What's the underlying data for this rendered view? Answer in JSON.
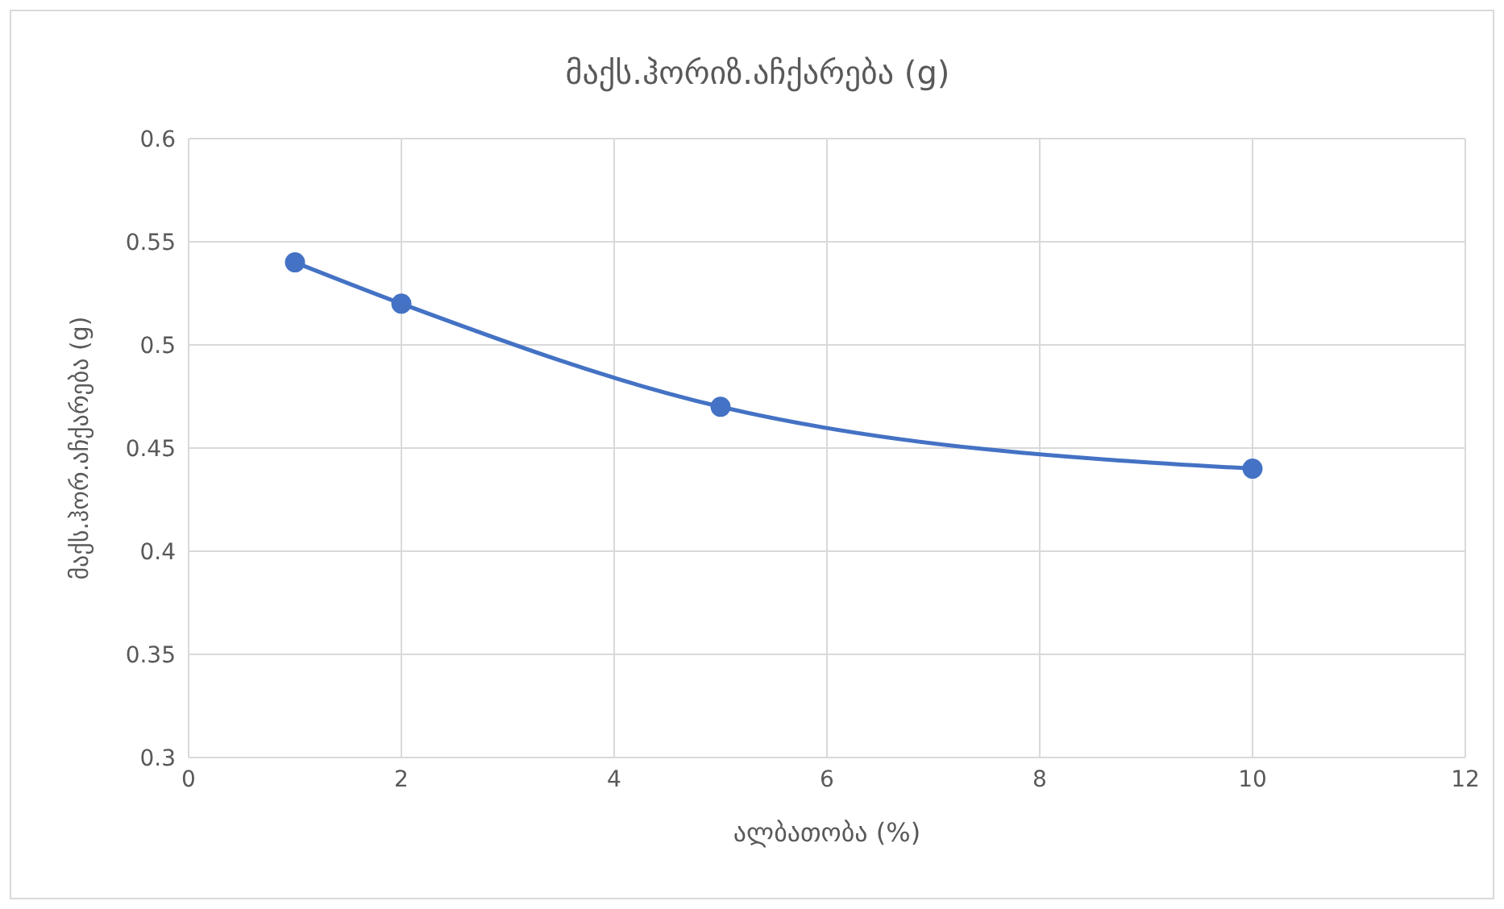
{
  "chart_data": {
    "type": "line",
    "title": "მაქს.ჰორიზ.აჩქარება (g)",
    "xlabel": "ალბათობა (%)",
    "ylabel": "მაქს.ჰორ.აჩქარება (g)",
    "x": [
      1,
      2,
      5,
      10
    ],
    "series": [
      {
        "color": "#4472c4",
        "values": [
          0.54,
          0.52,
          0.47,
          0.44
        ]
      }
    ],
    "xlim": [
      0,
      12
    ],
    "xticks": [
      0,
      2,
      4,
      6,
      8,
      10,
      12
    ],
    "ylim": [
      0.3,
      0.6
    ],
    "yticks": [
      0.3,
      0.35,
      0.4,
      0.45,
      0.5,
      0.55,
      0.6
    ],
    "grid": true,
    "marker": "circle",
    "line_style": "solid"
  }
}
